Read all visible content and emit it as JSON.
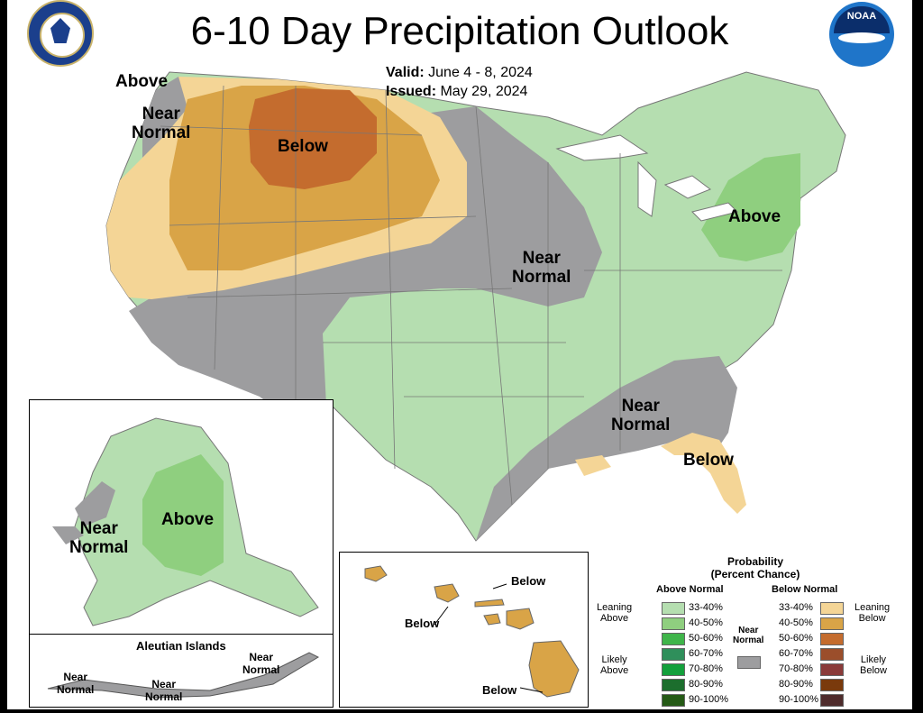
{
  "header": {
    "title": "6-10 Day Precipitation Outlook",
    "valid_label": "Valid:",
    "valid_value": "June 4 - 8, 2024",
    "issued_label": "Issued:",
    "issued_value": "May 29, 2024"
  },
  "logos": {
    "left": "department-of-commerce-seal",
    "left_text": "DEPARTMENT OF COMMERCE · UNITED STATES OF AMERICA",
    "right": "noaa-logo",
    "right_text": "NOAA"
  },
  "conus_labels": {
    "above_nw": "Above",
    "near_normal_nw": "Near\nNormal",
    "below_west": "Below",
    "near_normal_central": "Near\nNormal",
    "above_ne": "Above",
    "near_normal_se": "Near\nNormal",
    "below_fl": "Below"
  },
  "alaska": {
    "near_normal": "Near\nNormal",
    "above": "Above"
  },
  "aleutian": {
    "title": "Aleutian Islands",
    "near_normal_1": "Near\nNormal",
    "near_normal_2": "Near\nNormal",
    "near_normal_3": "Near\nNormal"
  },
  "hawaii": {
    "below_1": "Below",
    "below_2": "Below",
    "below_3": "Below"
  },
  "legend": {
    "title": "Probability\n(Percent Chance)",
    "above_header": "Above Normal",
    "below_header": "Below Normal",
    "near_label": "Near\nNormal",
    "leaning_above": "Leaning\nAbove",
    "likely_above": "Likely\nAbove",
    "leaning_below": "Leaning\nBelow",
    "likely_below": "Likely\nBelow",
    "above_rows": [
      {
        "range": "33-40%",
        "color": "#b5deb0"
      },
      {
        "range": "40-50%",
        "color": "#8fcf7f"
      },
      {
        "range": "50-60%",
        "color": "#3fb54a"
      },
      {
        "range": "60-70%",
        "color": "#2f8f5b"
      },
      {
        "range": "70-80%",
        "color": "#13a03c"
      },
      {
        "range": "80-90%",
        "color": "#1c6e2d"
      },
      {
        "range": "90-100%",
        "color": "#255a16"
      }
    ],
    "below_rows": [
      {
        "range": "33-40%",
        "color": "#f4d596"
      },
      {
        "range": "40-50%",
        "color": "#d9a447"
      },
      {
        "range": "50-60%",
        "color": "#c46c2e"
      },
      {
        "range": "60-70%",
        "color": "#9b4e2b"
      },
      {
        "range": "70-80%",
        "color": "#8a3a39"
      },
      {
        "range": "80-90%",
        "color": "#7a3a0c"
      },
      {
        "range": "90-100%",
        "color": "#4e2b2b"
      }
    ],
    "near_color": "#9d9d9f"
  },
  "colors": {
    "above_33": "#b5deb0",
    "above_40": "#8fcf7f",
    "near": "#9d9d9f",
    "below_33": "#f4d596",
    "below_40": "#d9a447",
    "below_50": "#c46c2e"
  }
}
